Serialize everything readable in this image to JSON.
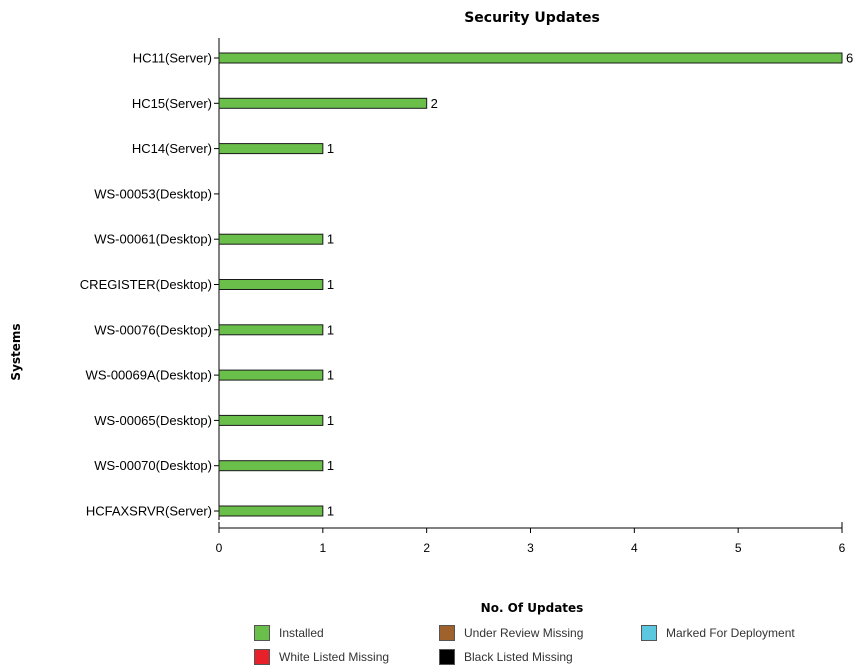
{
  "chart_data": {
    "type": "bar",
    "orientation": "horizontal",
    "title": "Security Updates",
    "xlabel": "No. Of Updates",
    "ylabel": "Systems",
    "categories": [
      "HC11(Server)",
      "HC15(Server)",
      "HC14(Server)",
      "WS-00053(Desktop)",
      "WS-00061(Desktop)",
      "CREGISTER(Desktop)",
      "WS-00076(Desktop)",
      "WS-00069A(Desktop)",
      "WS-00065(Desktop)",
      "WS-00070(Desktop)",
      "HCFAXSRVR(Server)"
    ],
    "series": [
      {
        "name": "Installed",
        "color": "#6abf4b",
        "values": [
          6,
          2,
          1,
          null,
          1,
          1,
          1,
          1,
          1,
          1,
          1
        ]
      }
    ],
    "data_labels": [
      "6",
      "2",
      "1",
      "",
      "1",
      "1",
      "1",
      "1",
      "1",
      "1",
      "1"
    ],
    "xlim": [
      0,
      6
    ],
    "xticks": [
      0,
      1,
      2,
      3,
      4,
      5,
      6
    ],
    "grid": false,
    "legend_position": "bottom",
    "legend": [
      {
        "label": "Installed",
        "color": "#6abf4b"
      },
      {
        "label": "Under Review Missing",
        "color": "#a0622d"
      },
      {
        "label": "Marked For Deployment",
        "color": "#5bc8e0"
      },
      {
        "label": "White Listed Missing",
        "color": "#e8202a"
      },
      {
        "label": "Black Listed Missing",
        "color": "#000000"
      }
    ]
  }
}
